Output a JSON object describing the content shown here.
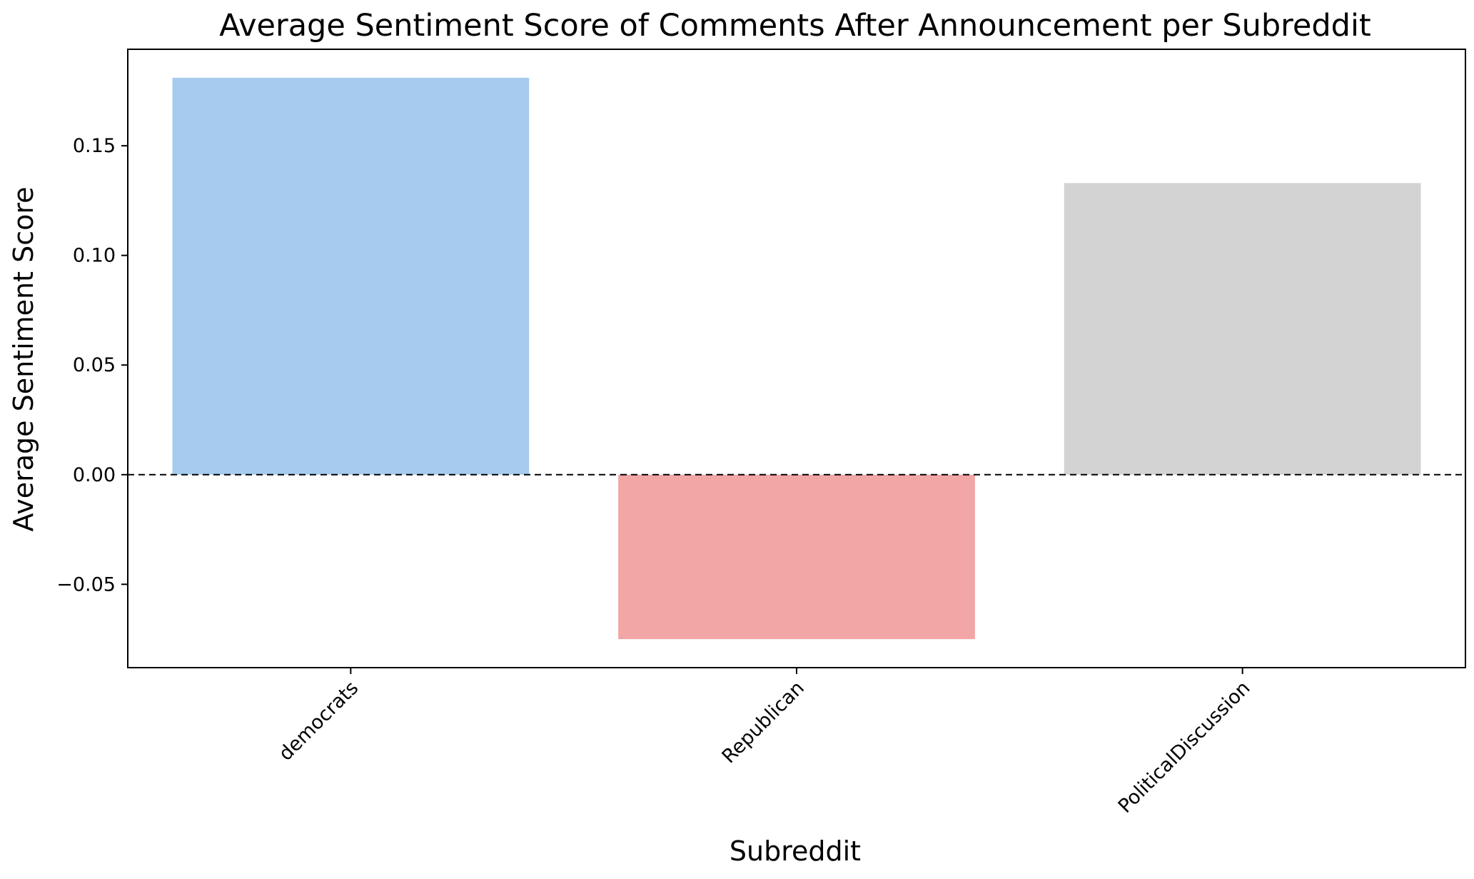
{
  "chart_data": {
    "type": "bar",
    "title": "Average Sentiment Score of Comments After Announcement per Subreddit",
    "xlabel": "Subreddit",
    "ylabel": "Average Sentiment Score",
    "categories": [
      "democrats",
      "Republican",
      "PoliticalDiscussion"
    ],
    "values": [
      0.181,
      -0.075,
      0.133
    ],
    "colors": [
      "#a6cbef",
      "#f2a6a6",
      "#d3d3d3"
    ],
    "ylim": [
      -0.088,
      0.194
    ],
    "yticks": [
      -0.05,
      0.0,
      0.05,
      0.1,
      0.15
    ],
    "ytick_labels": [
      "−0.05",
      "0.00",
      "0.05",
      "0.10",
      "0.15"
    ],
    "reference_line": {
      "y": 0.0,
      "style": "dashed",
      "color": "#000000"
    },
    "grid": false,
    "legend": "none",
    "xtick_rotation_deg": 45
  }
}
